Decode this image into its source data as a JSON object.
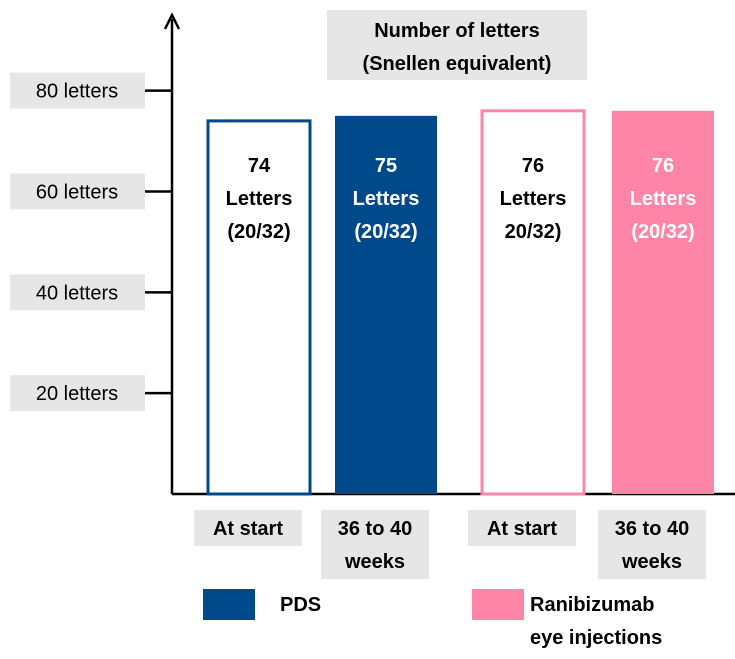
{
  "chart_data": {
    "type": "bar",
    "title": "Number of letters\n(Snellen equivalent)",
    "categories": [
      "At start",
      "36 to 40\nweeks"
    ],
    "series": [
      {
        "name": "PDS",
        "color": "#004a8c",
        "values": [
          74,
          75
        ],
        "value_labels": [
          "74\nLetters\n(20/32)",
          "75\nLetters\n(20/32)"
        ]
      },
      {
        "name": "Ranibizumab eye injections",
        "color": "#ff85a8",
        "values": [
          76,
          76
        ],
        "value_labels": [
          "76\nLetters\n20/32)",
          "76\nLetters\n(20/32)"
        ]
      }
    ],
    "ylim": [
      0,
      95
    ],
    "yticks": [
      {
        "value": 20,
        "label": "20 letters"
      },
      {
        "value": 40,
        "label": "40 letters"
      },
      {
        "value": 60,
        "label": "60 letters"
      },
      {
        "value": 80,
        "label": "80 letters"
      }
    ]
  }
}
